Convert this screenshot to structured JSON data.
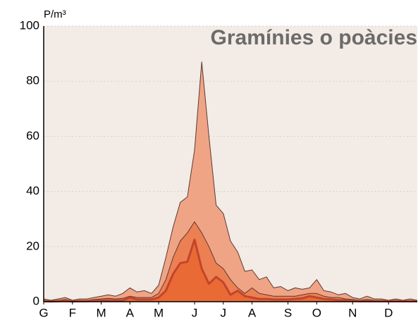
{
  "chart_data": {
    "type": "area",
    "title": "Gramínies o poàcies",
    "y_label": "P/m³",
    "categories": [
      "G",
      null,
      null,
      null,
      "F",
      null,
      null,
      null,
      "M",
      null,
      null,
      null,
      "A",
      null,
      null,
      null,
      "M",
      null,
      null,
      null,
      null,
      "J",
      null,
      null,
      null,
      "J",
      null,
      null,
      null,
      "A",
      null,
      null,
      null,
      null,
      "S",
      null,
      null,
      null,
      "O",
      null,
      null,
      null,
      null,
      "N",
      null,
      null,
      null,
      null,
      "D",
      null,
      null,
      null,
      null
    ],
    "series": [
      {
        "color": "#f0a486",
        "line_color": "#5a3a30",
        "line_width": 1,
        "values": [
          1,
          0.5,
          1,
          1.5,
          0.5,
          1,
          1,
          1.5,
          2,
          2.5,
          2,
          3,
          5,
          3.5,
          4,
          3,
          6,
          16,
          27,
          36,
          38,
          55,
          87,
          60,
          35,
          32,
          22,
          18,
          11,
          11.5,
          8,
          9,
          5,
          5.5,
          4,
          5,
          4.5,
          5,
          8,
          4,
          3.5,
          2.5,
          3,
          1.5,
          1,
          2,
          1,
          1,
          0.5,
          1,
          0.5,
          1,
          0.5
        ]
      },
      {
        "color": "#ec8052",
        "line_color": "#5a3a30",
        "line_width": 1,
        "values": [
          0.5,
          0.3,
          0.5,
          0.8,
          0.3,
          0.5,
          0.5,
          0.8,
          1,
          1.2,
          1,
          1.2,
          2,
          1.5,
          1.5,
          1.5,
          3,
          8,
          16,
          22,
          25,
          29,
          25,
          20,
          14,
          12,
          8,
          5,
          3,
          5,
          3,
          2.5,
          2,
          2,
          2,
          2,
          2.5,
          3,
          3,
          2,
          1.5,
          1.5,
          1,
          0.8,
          0.5,
          0.8,
          0.5,
          0.5,
          0.3,
          0.5,
          0.3,
          0.3,
          0.3
        ]
      },
      {
        "color": "#e96a35",
        "line_color": "#c3442b",
        "line_width": 3,
        "values": [
          0.2,
          0.1,
          0.2,
          0.3,
          0.1,
          0.2,
          0.2,
          0.3,
          0.4,
          0.5,
          0.4,
          0.5,
          1.5,
          0.8,
          0.8,
          0.8,
          1.5,
          4,
          10,
          14,
          14.5,
          22.5,
          12,
          6.5,
          9,
          7,
          2.5,
          4,
          2,
          1.5,
          1,
          1,
          0.8,
          0.8,
          0.8,
          1,
          1.2,
          2,
          1.5,
          1,
          0.8,
          0.6,
          0.5,
          0.3,
          0.2,
          0.2,
          0.2,
          0.2,
          0.2,
          0.2,
          0.2,
          0.2,
          0.2
        ]
      }
    ],
    "ylim": [
      0,
      100
    ],
    "yticks": [
      0,
      20,
      40,
      60,
      80,
      100
    ],
    "grid": true,
    "background": "#f3ebe5"
  }
}
